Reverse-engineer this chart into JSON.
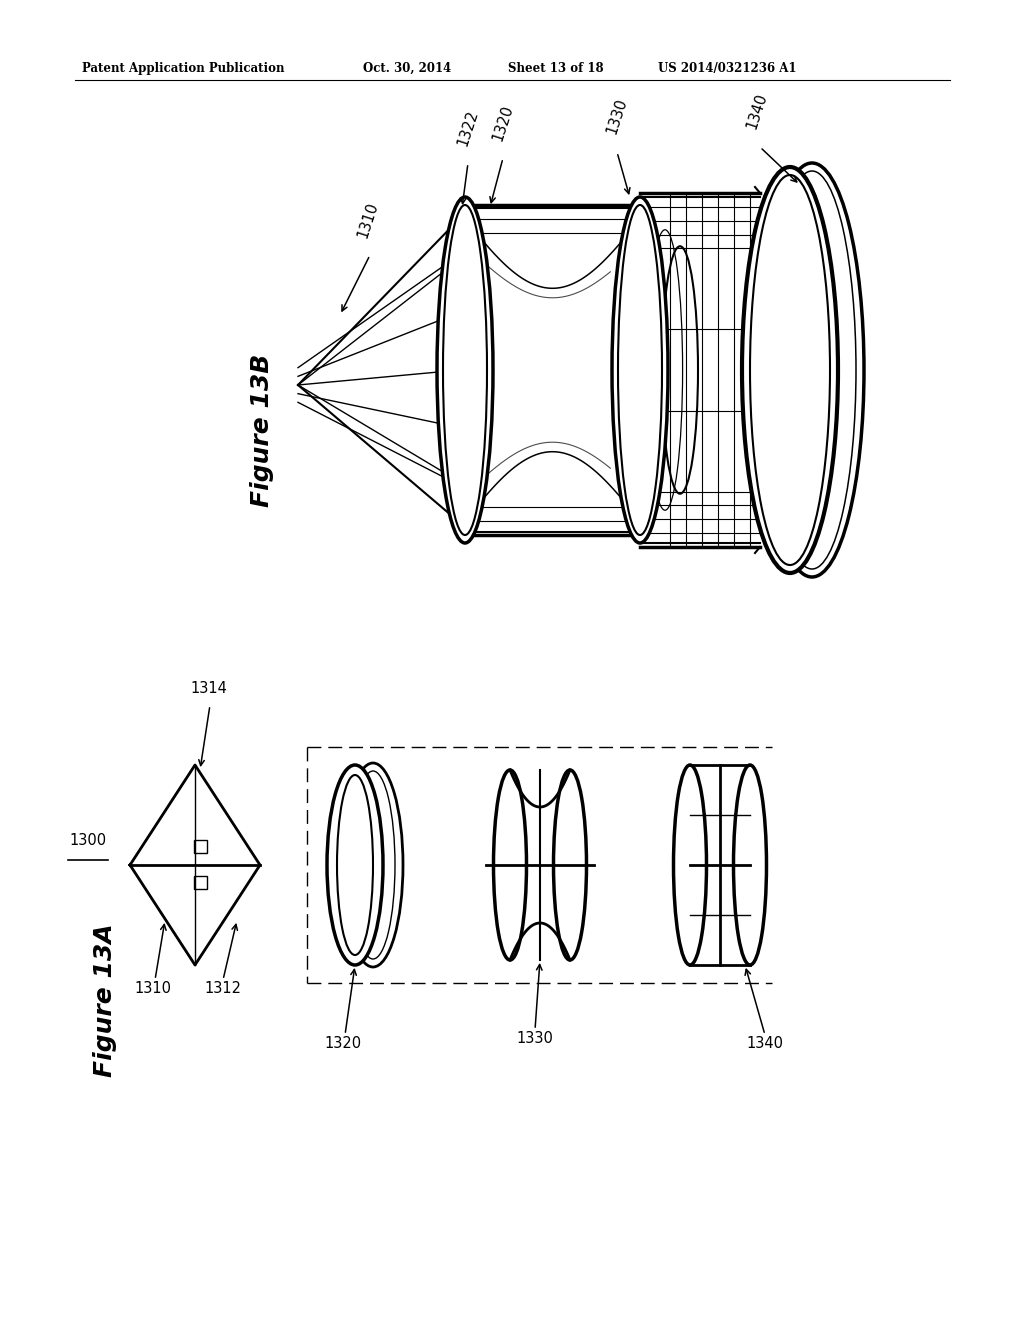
{
  "bg_color": "#ffffff",
  "header_left": "Patent Application Publication",
  "header_mid1": "Oct. 30, 2014",
  "header_mid2": "Sheet 13 of 18",
  "header_right": "US 2014/0321236 A1",
  "fig13b": "Figure 13B",
  "fig13a": "Figure 13A",
  "lw_thin": 0.7,
  "lw_med": 1.5,
  "lw_thick": 2.5
}
